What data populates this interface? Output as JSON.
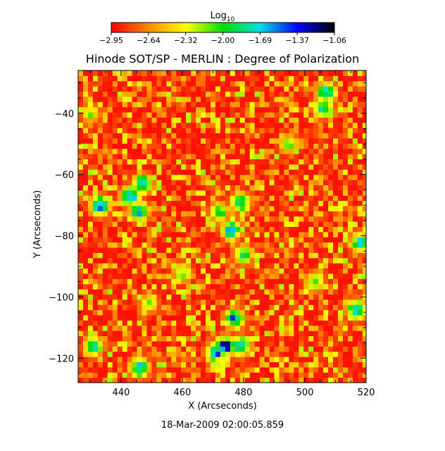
{
  "chart_data": {
    "type": "heatmap",
    "title": "Hinode SOT/SP - MERLIN : Degree of Polarization",
    "xlabel": "X (Arcseconds)",
    "ylabel": "Y (Arcseconds)",
    "xlim": [
      426,
      520
    ],
    "ylim": [
      -128,
      -26
    ],
    "x_ticks": [
      "440",
      "460",
      "480",
      "500",
      "520"
    ],
    "x_tick_values": [
      440,
      460,
      480,
      500,
      520
    ],
    "y_ticks": [
      "-40",
      "-60",
      "-80",
      "-100",
      "-120"
    ],
    "y_tick_values": [
      -40,
      -60,
      -80,
      -100,
      -120
    ],
    "timestamp": "18-Mar-2009 02:00:05.859",
    "colorbar": {
      "label": "Log",
      "label_subscript": "10",
      "range": [
        -2.95,
        -1.06
      ],
      "tick_labels": [
        "-2.95",
        "-2.64",
        "-2.32",
        "-2.00",
        "-1.69",
        "-1.37",
        "-1.06"
      ],
      "colors": [
        "#ff0000",
        "#ff8800",
        "#ffff00",
        "#00dd00",
        "#00e0e0",
        "#0000ff",
        "#000000"
      ]
    },
    "background_value": -2.95,
    "hotspots": [
      {
        "x": 433,
        "y": -70,
        "value": -1.35
      },
      {
        "x": 443,
        "y": -67,
        "value": -1.3
      },
      {
        "x": 447,
        "y": -63,
        "value": -1.5
      },
      {
        "x": 446,
        "y": -72,
        "value": -1.55
      },
      {
        "x": 474,
        "y": -116,
        "value": -1.15
      },
      {
        "x": 471,
        "y": -118,
        "value": -1.4
      },
      {
        "x": 479,
        "y": -116,
        "value": -1.5
      },
      {
        "x": 477,
        "y": -107,
        "value": -1.45
      },
      {
        "x": 476,
        "y": -78,
        "value": -1.45
      },
      {
        "x": 479,
        "y": -69,
        "value": -1.55
      },
      {
        "x": 472,
        "y": -72,
        "value": -1.85
      },
      {
        "x": 480,
        "y": -86,
        "value": -1.8
      },
      {
        "x": 446,
        "y": -123,
        "value": -1.5
      },
      {
        "x": 431,
        "y": -116,
        "value": -1.65
      },
      {
        "x": 517,
        "y": -104,
        "value": -1.4
      },
      {
        "x": 507,
        "y": -33,
        "value": -1.55
      },
      {
        "x": 506,
        "y": -38,
        "value": -1.65
      },
      {
        "x": 518,
        "y": -82,
        "value": -1.6
      },
      {
        "x": 503,
        "y": -95,
        "value": -1.9
      },
      {
        "x": 460,
        "y": -92,
        "value": -2.0
      },
      {
        "x": 495,
        "y": -50,
        "value": -2.05
      },
      {
        "x": 449,
        "y": -102,
        "value": -2.1
      },
      {
        "x": 430,
        "y": -40,
        "value": -2.15
      }
    ]
  }
}
